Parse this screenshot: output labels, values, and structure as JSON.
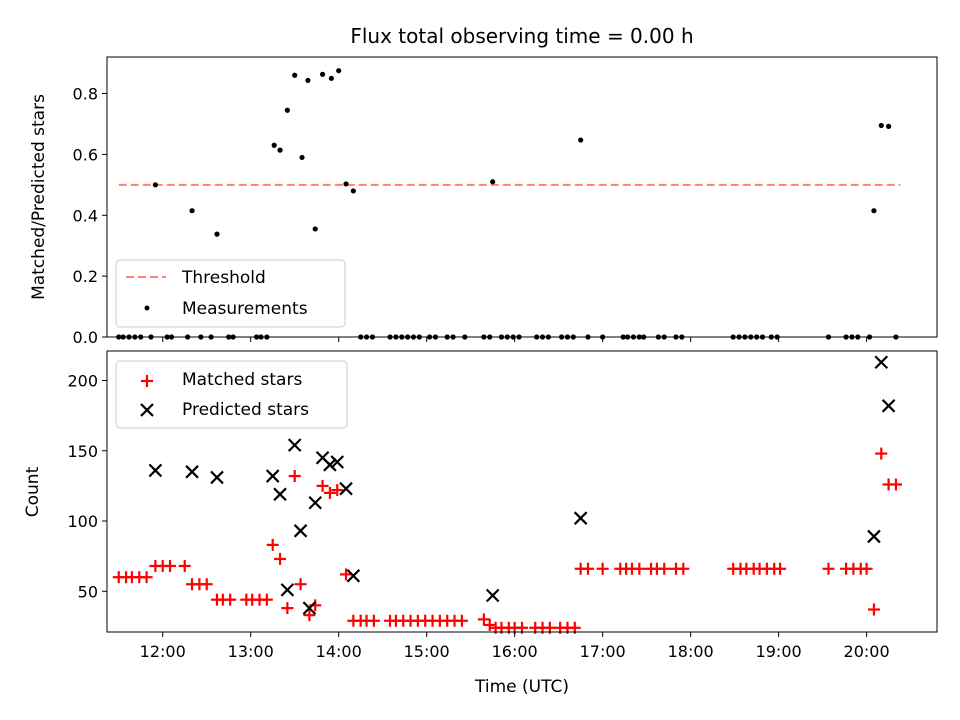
{
  "chart_data": [
    {
      "type": "scatter",
      "title": "Flux total observing time = 0.00 h",
      "xlabel": "",
      "ylabel": "Matched/Predicted stars",
      "x_unit": "time of day (UTC)",
      "xlim": [
        "11:22",
        "20:48"
      ],
      "ylim": [
        0,
        0.92
      ],
      "y_ticks": [
        0.0,
        0.2,
        0.4,
        0.6,
        0.8
      ],
      "y_tick_labels": [
        "0.0",
        "0.2",
        "0.4",
        "0.6",
        "0.8"
      ],
      "grid": false,
      "legend": "lower-left",
      "threshold": {
        "name": "Threshold",
        "value": 0.5,
        "x_range": [
          "11:30",
          "20:23"
        ],
        "color": "#ff7f7f",
        "style": "dashed"
      },
      "series": [
        {
          "name": "Measurements",
          "color": "#000000",
          "points": [
            {
              "x": "11:30",
              "y": 0
            },
            {
              "x": "11:33",
              "y": 0
            },
            {
              "x": "11:37",
              "y": 0
            },
            {
              "x": "11:41",
              "y": 0
            },
            {
              "x": "11:45",
              "y": 0
            },
            {
              "x": "11:52",
              "y": 0
            },
            {
              "x": "11:55",
              "y": 0.5
            },
            {
              "x": "12:03",
              "y": 0
            },
            {
              "x": "12:06",
              "y": 0
            },
            {
              "x": "12:17",
              "y": 0
            },
            {
              "x": "12:20",
              "y": 0.415
            },
            {
              "x": "12:26",
              "y": 0
            },
            {
              "x": "12:33",
              "y": 0
            },
            {
              "x": "12:37",
              "y": 0.338
            },
            {
              "x": "12:45",
              "y": 0
            },
            {
              "x": "12:48",
              "y": 0
            },
            {
              "x": "13:04",
              "y": 0
            },
            {
              "x": "13:07",
              "y": 0
            },
            {
              "x": "13:11",
              "y": 0
            },
            {
              "x": "13:16",
              "y": 0.63
            },
            {
              "x": "13:20",
              "y": 0.614
            },
            {
              "x": "13:25",
              "y": 0.745
            },
            {
              "x": "13:30",
              "y": 0.86
            },
            {
              "x": "13:35",
              "y": 0.59
            },
            {
              "x": "13:39",
              "y": 0.843
            },
            {
              "x": "13:44",
              "y": 0.355
            },
            {
              "x": "13:49",
              "y": 0.863
            },
            {
              "x": "13:55",
              "y": 0.85
            },
            {
              "x": "14:00",
              "y": 0.875
            },
            {
              "x": "14:05",
              "y": 0.503
            },
            {
              "x": "14:10",
              "y": 0.48
            },
            {
              "x": "14:15",
              "y": 0
            },
            {
              "x": "14:19",
              "y": 0
            },
            {
              "x": "14:23",
              "y": 0
            },
            {
              "x": "14:35",
              "y": 0
            },
            {
              "x": "14:39",
              "y": 0
            },
            {
              "x": "14:43",
              "y": 0
            },
            {
              "x": "14:47",
              "y": 0
            },
            {
              "x": "14:51",
              "y": 0
            },
            {
              "x": "14:55",
              "y": 0
            },
            {
              "x": "15:02",
              "y": 0
            },
            {
              "x": "15:06",
              "y": 0
            },
            {
              "x": "15:14",
              "y": 0
            },
            {
              "x": "15:18",
              "y": 0
            },
            {
              "x": "15:26",
              "y": 0
            },
            {
              "x": "15:39",
              "y": 0
            },
            {
              "x": "15:43",
              "y": 0
            },
            {
              "x": "15:45",
              "y": 0.51
            },
            {
              "x": "15:51",
              "y": 0
            },
            {
              "x": "15:55",
              "y": 0
            },
            {
              "x": "15:59",
              "y": 0
            },
            {
              "x": "16:03",
              "y": 0
            },
            {
              "x": "16:15",
              "y": 0
            },
            {
              "x": "16:19",
              "y": 0
            },
            {
              "x": "16:23",
              "y": 0
            },
            {
              "x": "16:32",
              "y": 0
            },
            {
              "x": "16:36",
              "y": 0
            },
            {
              "x": "16:40",
              "y": 0
            },
            {
              "x": "16:45",
              "y": 0.647
            },
            {
              "x": "16:50",
              "y": 0
            },
            {
              "x": "17:00",
              "y": 0
            },
            {
              "x": "17:14",
              "y": 0
            },
            {
              "x": "17:17",
              "y": 0
            },
            {
              "x": "17:21",
              "y": 0
            },
            {
              "x": "17:25",
              "y": 0
            },
            {
              "x": "17:28",
              "y": 0
            },
            {
              "x": "17:38",
              "y": 0
            },
            {
              "x": "17:42",
              "y": 0
            },
            {
              "x": "17:50",
              "y": 0
            },
            {
              "x": "17:54",
              "y": 0
            },
            {
              "x": "18:29",
              "y": 0
            },
            {
              "x": "18:33",
              "y": 0
            },
            {
              "x": "18:37",
              "y": 0
            },
            {
              "x": "18:41",
              "y": 0
            },
            {
              "x": "18:45",
              "y": 0
            },
            {
              "x": "18:49",
              "y": 0
            },
            {
              "x": "18:55",
              "y": 0
            },
            {
              "x": "18:59",
              "y": 0
            },
            {
              "x": "19:34",
              "y": 0
            },
            {
              "x": "19:46",
              "y": 0
            },
            {
              "x": "19:50",
              "y": 0
            },
            {
              "x": "19:54",
              "y": 0
            },
            {
              "x": "20:02",
              "y": 0
            },
            {
              "x": "20:05",
              "y": 0.415
            },
            {
              "x": "20:10",
              "y": 0.695
            },
            {
              "x": "20:15",
              "y": 0.692
            },
            {
              "x": "20:20",
              "y": 0
            }
          ]
        }
      ]
    },
    {
      "type": "scatter",
      "title": "",
      "xlabel": "Time (UTC)",
      "ylabel": "Count",
      "x_unit": "time of day (UTC)",
      "xlim": [
        "11:22",
        "20:48"
      ],
      "ylim": [
        21,
        221
      ],
      "x_ticks": [
        "12:00",
        "13:00",
        "14:00",
        "15:00",
        "16:00",
        "17:00",
        "18:00",
        "19:00",
        "20:00"
      ],
      "x_tick_labels": [
        "12:00",
        "13:00",
        "14:00",
        "15:00",
        "16:00",
        "17:00",
        "18:00",
        "19:00",
        "20:00"
      ],
      "y_ticks": [
        50,
        100,
        150,
        200
      ],
      "y_tick_labels": [
        "50",
        "100",
        "150",
        "200"
      ],
      "grid": false,
      "legend": "top-left",
      "series": [
        {
          "name": "Matched stars",
          "color": "#ff0000",
          "marker": "plus",
          "points": [
            {
              "x": "11:30",
              "y": 60
            },
            {
              "x": "11:35",
              "y": 60
            },
            {
              "x": "11:39",
              "y": 60
            },
            {
              "x": "11:44",
              "y": 60
            },
            {
              "x": "11:49",
              "y": 60
            },
            {
              "x": "11:55",
              "y": 68
            },
            {
              "x": "12:00",
              "y": 68
            },
            {
              "x": "12:05",
              "y": 68
            },
            {
              "x": "12:15",
              "y": 68
            },
            {
              "x": "12:20",
              "y": 55
            },
            {
              "x": "12:25",
              "y": 55
            },
            {
              "x": "12:30",
              "y": 55
            },
            {
              "x": "12:37",
              "y": 44
            },
            {
              "x": "12:41",
              "y": 44
            },
            {
              "x": "12:46",
              "y": 44
            },
            {
              "x": "12:57",
              "y": 44
            },
            {
              "x": "13:01",
              "y": 44
            },
            {
              "x": "13:06",
              "y": 44
            },
            {
              "x": "13:11",
              "y": 44
            },
            {
              "x": "13:15",
              "y": 83
            },
            {
              "x": "13:20",
              "y": 73
            },
            {
              "x": "13:25",
              "y": 38
            },
            {
              "x": "13:30",
              "y": 132
            },
            {
              "x": "13:34",
              "y": 55
            },
            {
              "x": "13:40",
              "y": 33
            },
            {
              "x": "13:44",
              "y": 40
            },
            {
              "x": "13:49",
              "y": 125
            },
            {
              "x": "13:54",
              "y": 120
            },
            {
              "x": "13:59",
              "y": 122
            },
            {
              "x": "14:05",
              "y": 62
            },
            {
              "x": "14:10",
              "y": 29
            },
            {
              "x": "14:15",
              "y": 29
            },
            {
              "x": "14:19",
              "y": 29
            },
            {
              "x": "14:24",
              "y": 29
            },
            {
              "x": "14:35",
              "y": 29
            },
            {
              "x": "14:39",
              "y": 29
            },
            {
              "x": "14:44",
              "y": 29
            },
            {
              "x": "14:49",
              "y": 29
            },
            {
              "x": "14:54",
              "y": 29
            },
            {
              "x": "14:59",
              "y": 29
            },
            {
              "x": "15:04",
              "y": 29
            },
            {
              "x": "15:09",
              "y": 29
            },
            {
              "x": "15:14",
              "y": 29
            },
            {
              "x": "15:19",
              "y": 29
            },
            {
              "x": "15:24",
              "y": 29
            },
            {
              "x": "15:39",
              "y": 30
            },
            {
              "x": "15:43",
              "y": 26
            },
            {
              "x": "15:47",
              "y": 24
            },
            {
              "x": "15:51",
              "y": 24
            },
            {
              "x": "15:56",
              "y": 24
            },
            {
              "x": "16:00",
              "y": 24
            },
            {
              "x": "16:05",
              "y": 24
            },
            {
              "x": "16:14",
              "y": 24
            },
            {
              "x": "16:19",
              "y": 24
            },
            {
              "x": "16:24",
              "y": 24
            },
            {
              "x": "16:31",
              "y": 24
            },
            {
              "x": "16:36",
              "y": 24
            },
            {
              "x": "16:41",
              "y": 24
            },
            {
              "x": "16:45",
              "y": 66
            },
            {
              "x": "16:50",
              "y": 66
            },
            {
              "x": "17:00",
              "y": 66
            },
            {
              "x": "17:12",
              "y": 66
            },
            {
              "x": "17:16",
              "y": 66
            },
            {
              "x": "17:20",
              "y": 66
            },
            {
              "x": "17:25",
              "y": 66
            },
            {
              "x": "17:33",
              "y": 66
            },
            {
              "x": "17:37",
              "y": 66
            },
            {
              "x": "17:42",
              "y": 66
            },
            {
              "x": "17:50",
              "y": 66
            },
            {
              "x": "17:55",
              "y": 66
            },
            {
              "x": "18:29",
              "y": 66
            },
            {
              "x": "18:34",
              "y": 66
            },
            {
              "x": "18:38",
              "y": 66
            },
            {
              "x": "18:43",
              "y": 66
            },
            {
              "x": "18:47",
              "y": 66
            },
            {
              "x": "18:52",
              "y": 66
            },
            {
              "x": "18:57",
              "y": 66
            },
            {
              "x": "19:01",
              "y": 66
            },
            {
              "x": "19:34",
              "y": 66
            },
            {
              "x": "19:46",
              "y": 66
            },
            {
              "x": "19:51",
              "y": 66
            },
            {
              "x": "19:56",
              "y": 66
            },
            {
              "x": "20:00",
              "y": 66
            },
            {
              "x": "20:05",
              "y": 37
            },
            {
              "x": "20:10",
              "y": 148
            },
            {
              "x": "20:15",
              "y": 126
            },
            {
              "x": "20:20",
              "y": 126
            }
          ]
        },
        {
          "name": "Predicted stars",
          "color": "#000000",
          "marker": "x",
          "points": [
            {
              "x": "11:55",
              "y": 136
            },
            {
              "x": "12:20",
              "y": 135
            },
            {
              "x": "12:37",
              "y": 131
            },
            {
              "x": "13:15",
              "y": 132
            },
            {
              "x": "13:20",
              "y": 119
            },
            {
              "x": "13:25",
              "y": 51
            },
            {
              "x": "13:30",
              "y": 154
            },
            {
              "x": "13:34",
              "y": 93
            },
            {
              "x": "13:40",
              "y": 38
            },
            {
              "x": "13:44",
              "y": 113
            },
            {
              "x": "13:49",
              "y": 145
            },
            {
              "x": "13:54",
              "y": 140
            },
            {
              "x": "13:59",
              "y": 142
            },
            {
              "x": "14:05",
              "y": 123
            },
            {
              "x": "14:10",
              "y": 61
            },
            {
              "x": "15:45",
              "y": 47
            },
            {
              "x": "16:45",
              "y": 102
            },
            {
              "x": "20:05",
              "y": 89
            },
            {
              "x": "20:10",
              "y": 213
            },
            {
              "x": "20:15",
              "y": 182
            }
          ]
        }
      ]
    }
  ]
}
